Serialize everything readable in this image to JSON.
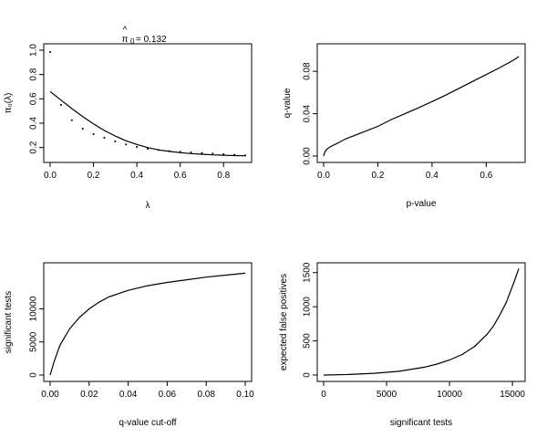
{
  "chart_data": [
    {
      "type": "scatter",
      "name": "pi0-vs-lambda",
      "title": "π0 = 0.132",
      "title_prefix": "π",
      "title_sub": "0",
      "title_suffix": "= 0.132",
      "title_hat": "^",
      "xlabel": "λ",
      "ylabel": "π₀(λ)",
      "xlim": [
        0,
        0.9
      ],
      "ylim": [
        0.13,
        1.0
      ],
      "xticks": [
        0.0,
        0.2,
        0.4,
        0.6,
        0.8
      ],
      "xtick_labels": [
        "0.0",
        "0.2",
        "0.4",
        "0.6",
        "0.8"
      ],
      "yticks": [
        0.2,
        0.4,
        0.6,
        0.8,
        1.0
      ],
      "ytick_labels": [
        "0.2",
        "0.4",
        "0.6",
        "0.8",
        "1.0"
      ],
      "points": {
        "x": [
          0.0,
          0.05,
          0.1,
          0.15,
          0.2,
          0.25,
          0.3,
          0.35,
          0.4,
          0.45,
          0.5,
          0.55,
          0.6,
          0.65,
          0.7,
          0.75,
          0.8,
          0.85,
          0.9
        ],
        "y": [
          0.985,
          0.55,
          0.425,
          0.355,
          0.31,
          0.28,
          0.25,
          0.225,
          0.205,
          0.19,
          0.18,
          0.17,
          0.165,
          0.16,
          0.155,
          0.15,
          0.145,
          0.14,
          0.135
        ]
      },
      "curve": {
        "x": [
          0.0,
          0.05,
          0.1,
          0.15,
          0.2,
          0.25,
          0.3,
          0.35,
          0.4,
          0.45,
          0.5,
          0.55,
          0.6,
          0.65,
          0.7,
          0.75,
          0.8,
          0.85,
          0.9
        ],
        "y": [
          0.66,
          0.59,
          0.52,
          0.455,
          0.395,
          0.34,
          0.295,
          0.255,
          0.225,
          0.2,
          0.18,
          0.168,
          0.158,
          0.15,
          0.145,
          0.14,
          0.137,
          0.134,
          0.132
        ]
      }
    },
    {
      "type": "line",
      "name": "qvalue-vs-pvalue",
      "xlabel": "p-value",
      "ylabel": "q-value",
      "xlim": [
        0,
        0.72
      ],
      "ylim": [
        0,
        0.1
      ],
      "xticks": [
        0.0,
        0.2,
        0.4,
        0.6
      ],
      "xtick_labels": [
        "0.0",
        "0.2",
        "0.4",
        "0.6"
      ],
      "yticks": [
        0.0,
        0.04,
        0.08
      ],
      "ytick_labels": [
        "0.00",
        "0.04",
        "0.08"
      ],
      "x": [
        0.0,
        0.002,
        0.005,
        0.01,
        0.02,
        0.03,
        0.05,
        0.08,
        0.1,
        0.15,
        0.2,
        0.25,
        0.3,
        0.35,
        0.4,
        0.45,
        0.5,
        0.55,
        0.6,
        0.65,
        0.7,
        0.72
      ],
      "y": [
        0.0,
        0.002,
        0.004,
        0.006,
        0.008,
        0.0095,
        0.012,
        0.016,
        0.018,
        0.023,
        0.028,
        0.0345,
        0.04,
        0.0455,
        0.0515,
        0.0575,
        0.064,
        0.0705,
        0.077,
        0.0835,
        0.0905,
        0.094
      ]
    },
    {
      "type": "line",
      "name": "significant-vs-qcutoff",
      "xlabel": "q-value cut-off",
      "ylabel": "significant tests",
      "xlim": [
        0,
        0.1
      ],
      "ylim": [
        0,
        16000
      ],
      "xticks": [
        0.0,
        0.02,
        0.04,
        0.06,
        0.08,
        0.1
      ],
      "xtick_labels": [
        "0.00",
        "0.02",
        "0.04",
        "0.06",
        "0.08",
        "0.10"
      ],
      "yticks": [
        0,
        5000,
        10000
      ],
      "ytick_labels": [
        "0",
        "5000",
        "10000"
      ],
      "x": [
        0.0,
        0.002,
        0.005,
        0.01,
        0.015,
        0.02,
        0.025,
        0.03,
        0.04,
        0.05,
        0.06,
        0.07,
        0.08,
        0.09,
        0.1
      ],
      "y": [
        0,
        2000,
        4500,
        7000,
        8700,
        10000,
        11000,
        11800,
        12800,
        13500,
        14000,
        14400,
        14800,
        15100,
        15400
      ]
    },
    {
      "type": "line",
      "name": "fp-vs-significant",
      "xlabel": "significant tests",
      "ylabel": "expected false positives",
      "xlim": [
        0,
        15500
      ],
      "ylim": [
        0,
        1550
      ],
      "xticks": [
        0,
        5000,
        10000,
        15000
      ],
      "xtick_labels": [
        "0",
        "5000",
        "10000",
        "15000"
      ],
      "yticks": [
        0,
        500,
        1000,
        1500
      ],
      "ytick_labels": [
        "0",
        "500",
        "1000",
        "1500"
      ],
      "x": [
        0,
        2000,
        4000,
        6000,
        8000,
        9000,
        10000,
        11000,
        12000,
        13000,
        13500,
        14000,
        14500,
        15000,
        15300,
        15500
      ],
      "y": [
        0,
        8,
        25,
        55,
        115,
        160,
        220,
        300,
        420,
        600,
        720,
        880,
        1060,
        1300,
        1450,
        1560
      ]
    }
  ]
}
